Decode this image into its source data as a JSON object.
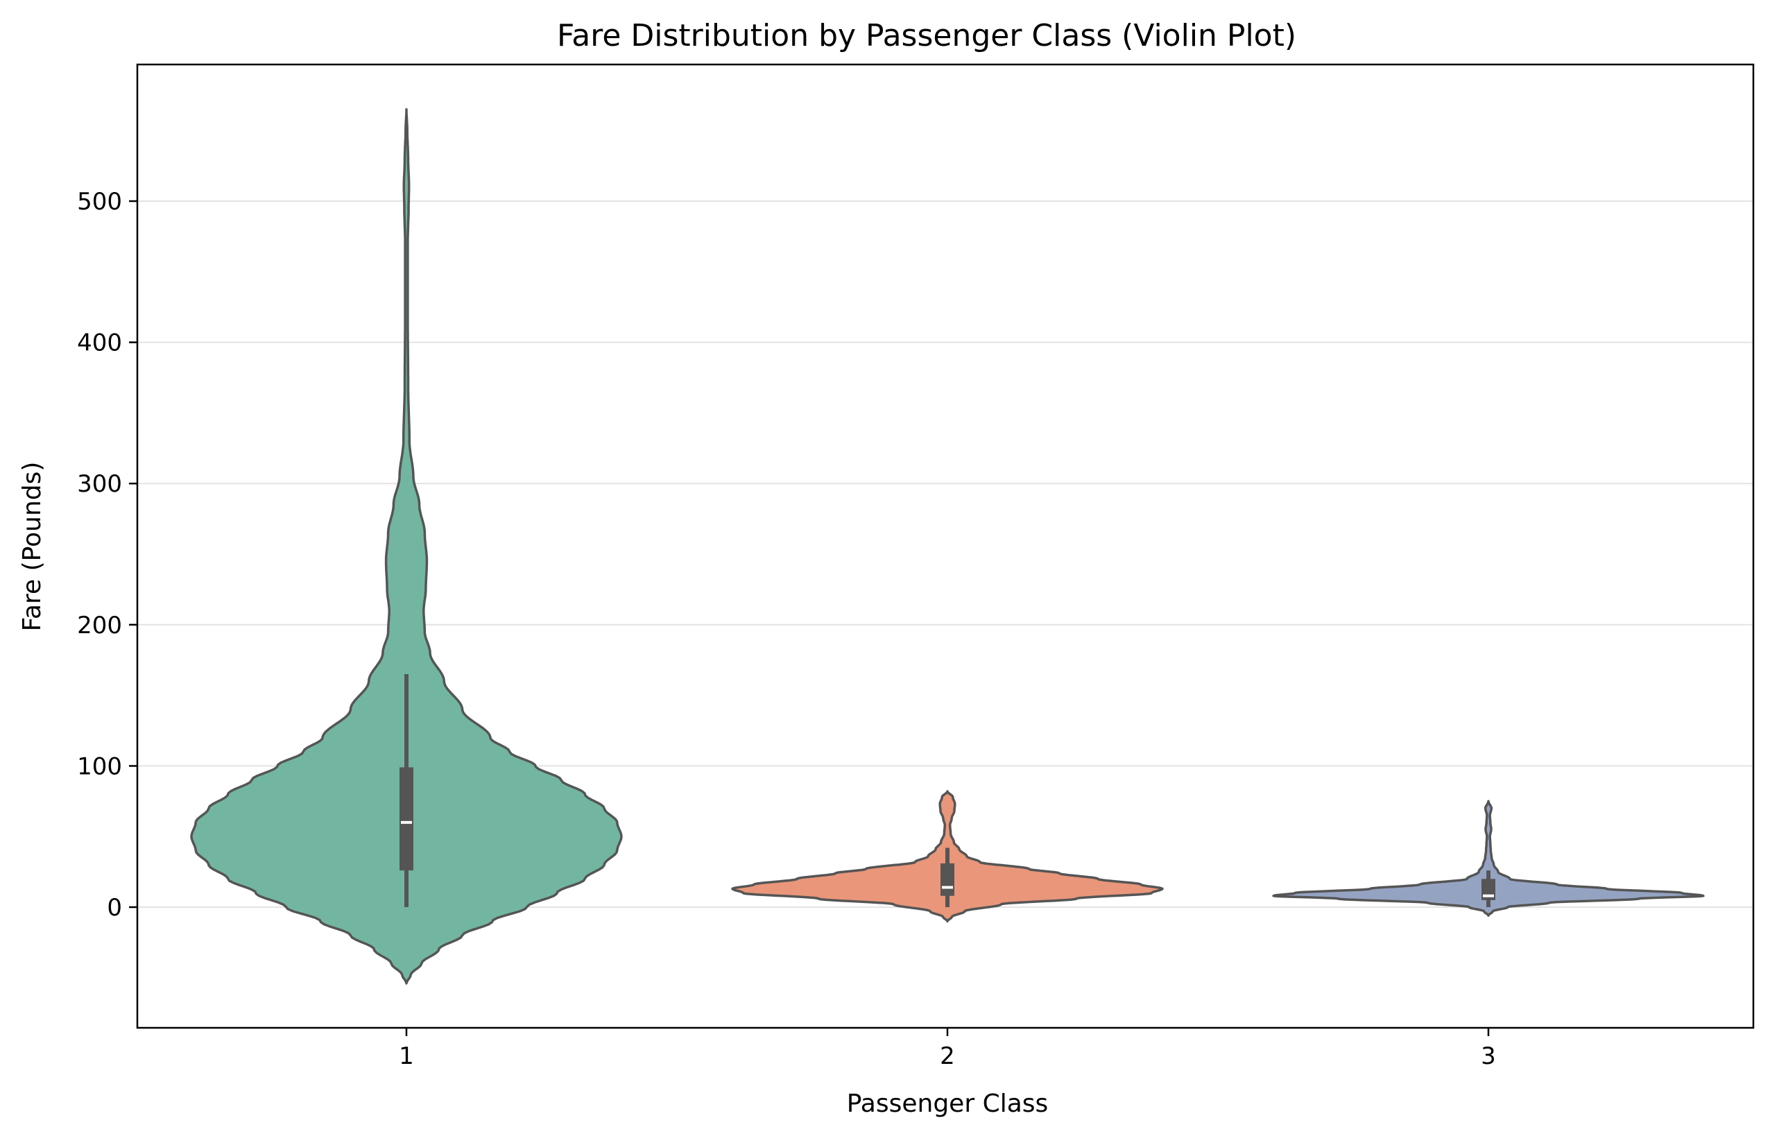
{
  "chart_data": {
    "type": "violin",
    "title": "Fare Distribution by Passenger Class (Violin Plot)",
    "xlabel": "Passenger Class",
    "ylabel": "Fare (Pounds)",
    "categories": [
      "1",
      "2",
      "3"
    ],
    "ylim": [
      -85,
      597
    ],
    "yticks": [
      0,
      100,
      200,
      300,
      400,
      500
    ],
    "grid": "horizontal",
    "colors": [
      "#72b6a1",
      "#e9967a",
      "#95a3c3"
    ],
    "edge_color": "#555555",
    "violins": [
      {
        "category": "1",
        "color": "#72b6a1",
        "box": {
          "min": 0,
          "q1": 26,
          "median": 60,
          "q3": 99,
          "max": 165
        },
        "profile": [
          [
            -54,
            0.0
          ],
          [
            -48,
            0.02
          ],
          [
            -40,
            0.07
          ],
          [
            -30,
            0.15
          ],
          [
            -20,
            0.26
          ],
          [
            -10,
            0.4
          ],
          [
            0,
            0.56
          ],
          [
            10,
            0.7
          ],
          [
            20,
            0.83
          ],
          [
            30,
            0.92
          ],
          [
            40,
            0.98
          ],
          [
            50,
            1.0
          ],
          [
            60,
            0.98
          ],
          [
            70,
            0.92
          ],
          [
            80,
            0.83
          ],
          [
            90,
            0.72
          ],
          [
            100,
            0.6
          ],
          [
            110,
            0.48
          ],
          [
            120,
            0.39
          ],
          [
            140,
            0.26
          ],
          [
            160,
            0.175
          ],
          [
            180,
            0.11
          ],
          [
            195,
            0.085
          ],
          [
            210,
            0.08
          ],
          [
            225,
            0.09
          ],
          [
            245,
            0.095
          ],
          [
            265,
            0.085
          ],
          [
            285,
            0.06
          ],
          [
            305,
            0.032
          ],
          [
            330,
            0.014
          ],
          [
            370,
            0.008
          ],
          [
            420,
            0.006
          ],
          [
            470,
            0.006
          ],
          [
            495,
            0.01
          ],
          [
            510,
            0.012
          ],
          [
            530,
            0.008
          ],
          [
            550,
            0.004
          ],
          [
            565,
            0.0
          ]
        ]
      },
      {
        "category": "2",
        "color": "#e9967a",
        "box": {
          "min": 0,
          "q1": 8,
          "median": 14,
          "q3": 31,
          "max": 42
        },
        "profile": [
          [
            -10,
            0.0
          ],
          [
            -7,
            0.02
          ],
          [
            -3,
            0.08
          ],
          [
            2,
            0.25
          ],
          [
            6,
            0.6
          ],
          [
            10,
            0.95
          ],
          [
            13,
            1.0
          ],
          [
            16,
            0.9
          ],
          [
            20,
            0.7
          ],
          [
            24,
            0.52
          ],
          [
            27,
            0.38
          ],
          [
            32,
            0.15
          ],
          [
            36,
            0.09
          ],
          [
            41,
            0.055
          ],
          [
            46,
            0.03
          ],
          [
            52,
            0.015
          ],
          [
            58,
            0.012
          ],
          [
            63,
            0.02
          ],
          [
            68,
            0.032
          ],
          [
            73,
            0.035
          ],
          [
            78,
            0.025
          ],
          [
            82,
            0.0
          ]
        ]
      },
      {
        "category": "3",
        "color": "#95a3c3",
        "box": {
          "min": 0,
          "q1": 5,
          "median": 8,
          "q3": 20,
          "max": 26
        },
        "profile": [
          [
            -6,
            0.0
          ],
          [
            -3,
            0.02
          ],
          [
            0,
            0.09
          ],
          [
            3,
            0.28
          ],
          [
            6,
            0.7
          ],
          [
            8,
            1.0
          ],
          [
            10,
            0.9
          ],
          [
            13,
            0.55
          ],
          [
            16,
            0.32
          ],
          [
            20,
            0.1
          ],
          [
            25,
            0.045
          ],
          [
            30,
            0.025
          ],
          [
            35,
            0.015
          ],
          [
            40,
            0.011
          ],
          [
            45,
            0.009
          ],
          [
            50,
            0.007
          ],
          [
            55,
            0.013
          ],
          [
            60,
            0.009
          ],
          [
            65,
            0.007
          ],
          [
            70,
            0.014
          ],
          [
            75,
            0.0
          ]
        ]
      }
    ]
  }
}
